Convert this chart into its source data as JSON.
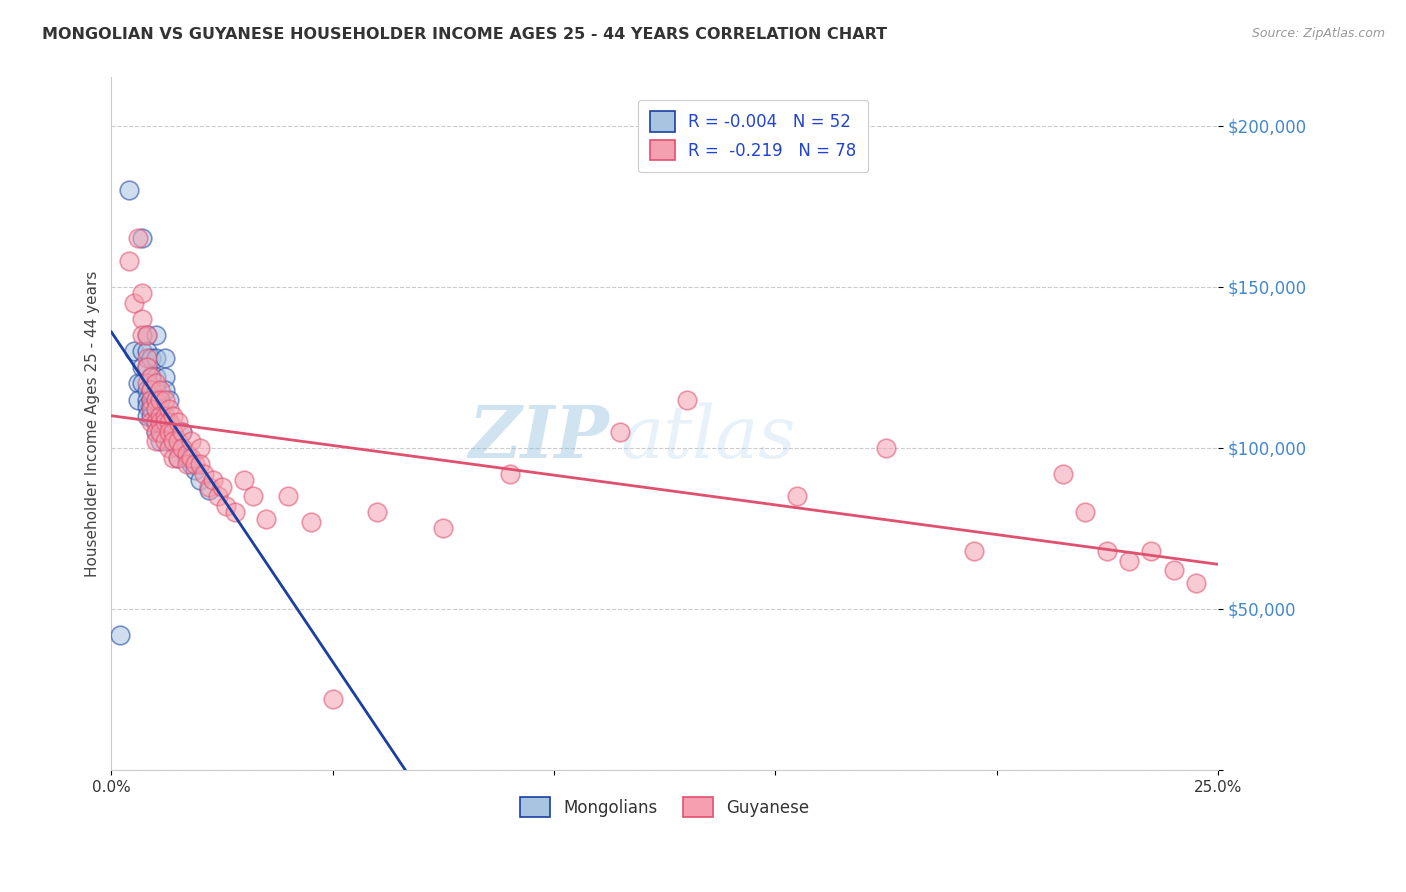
{
  "title": "MONGOLIAN VS GUYANESE HOUSEHOLDER INCOME AGES 25 - 44 YEARS CORRELATION CHART",
  "source": "Source: ZipAtlas.com",
  "ylabel": "Householder Income Ages 25 - 44 years",
  "xlabel_ticks": [
    0.0,
    0.05,
    0.1,
    0.15,
    0.2,
    0.25
  ],
  "xlabel_labels": [
    "0.0%",
    "",
    "",
    "",
    "",
    "25.0%"
  ],
  "ytick_vals": [
    0,
    50000,
    100000,
    150000,
    200000
  ],
  "ytick_labels": [
    "",
    "$50,000",
    "$100,000",
    "$150,000",
    "$200,000"
  ],
  "xmin": 0.0,
  "xmax": 0.25,
  "ymin": 0,
  "ymax": 215000,
  "legend_r_mongolian": "-0.004",
  "legend_n_mongolian": "52",
  "legend_r_guyanese": "-0.219",
  "legend_n_guyanese": "78",
  "mongolian_color": "#a8c4e0",
  "guyanese_color": "#f4a0b0",
  "trend_mongolian_color": "#1a3fa0",
  "trend_guyanese_color": "#e05070",
  "background_color": "#ffffff",
  "grid_color": "#cccccc",
  "watermark_zip": "ZIP",
  "watermark_atlas": "atlas",
  "mongolian_x": [
    0.002,
    0.004,
    0.005,
    0.006,
    0.006,
    0.007,
    0.007,
    0.007,
    0.007,
    0.008,
    0.008,
    0.008,
    0.008,
    0.008,
    0.008,
    0.008,
    0.009,
    0.009,
    0.009,
    0.009,
    0.009,
    0.009,
    0.01,
    0.01,
    0.01,
    0.01,
    0.01,
    0.01,
    0.01,
    0.01,
    0.011,
    0.011,
    0.011,
    0.011,
    0.011,
    0.012,
    0.012,
    0.012,
    0.012,
    0.013,
    0.013,
    0.013,
    0.014,
    0.015,
    0.015,
    0.016,
    0.016,
    0.017,
    0.018,
    0.019,
    0.02,
    0.022
  ],
  "mongolian_y": [
    42000,
    180000,
    130000,
    120000,
    115000,
    165000,
    130000,
    125000,
    120000,
    135000,
    130000,
    125000,
    118000,
    115000,
    113000,
    110000,
    128000,
    122000,
    118000,
    115000,
    113000,
    110000,
    135000,
    128000,
    122000,
    118000,
    115000,
    112000,
    108000,
    105000,
    115000,
    112000,
    108000,
    105000,
    102000,
    128000,
    122000,
    118000,
    108000,
    115000,
    108000,
    102000,
    105000,
    100000,
    97000,
    105000,
    100000,
    97000,
    95000,
    93000,
    90000,
    87000
  ],
  "guyanese_x": [
    0.004,
    0.005,
    0.006,
    0.007,
    0.007,
    0.007,
    0.008,
    0.008,
    0.008,
    0.008,
    0.009,
    0.009,
    0.009,
    0.009,
    0.009,
    0.01,
    0.01,
    0.01,
    0.01,
    0.01,
    0.01,
    0.011,
    0.011,
    0.011,
    0.011,
    0.011,
    0.012,
    0.012,
    0.012,
    0.012,
    0.013,
    0.013,
    0.013,
    0.013,
    0.014,
    0.014,
    0.014,
    0.014,
    0.015,
    0.015,
    0.015,
    0.016,
    0.016,
    0.017,
    0.017,
    0.018,
    0.018,
    0.019,
    0.02,
    0.02,
    0.021,
    0.022,
    0.023,
    0.024,
    0.025,
    0.026,
    0.028,
    0.03,
    0.032,
    0.035,
    0.04,
    0.045,
    0.05,
    0.06,
    0.075,
    0.09,
    0.115,
    0.13,
    0.155,
    0.175,
    0.195,
    0.215,
    0.22,
    0.225,
    0.23,
    0.235,
    0.24,
    0.245
  ],
  "guyanese_y": [
    158000,
    145000,
    165000,
    148000,
    140000,
    135000,
    135000,
    128000,
    125000,
    120000,
    122000,
    118000,
    115000,
    112000,
    108000,
    120000,
    115000,
    112000,
    108000,
    105000,
    102000,
    118000,
    115000,
    110000,
    108000,
    105000,
    115000,
    110000,
    108000,
    102000,
    112000,
    108000,
    105000,
    100000,
    110000,
    105000,
    102000,
    97000,
    108000,
    102000,
    97000,
    105000,
    100000,
    98000,
    95000,
    102000,
    97000,
    95000,
    100000,
    95000,
    92000,
    88000,
    90000,
    85000,
    88000,
    82000,
    80000,
    90000,
    85000,
    78000,
    85000,
    77000,
    22000,
    80000,
    75000,
    92000,
    105000,
    115000,
    85000,
    100000,
    68000,
    92000,
    80000,
    68000,
    65000,
    68000,
    62000,
    58000
  ]
}
